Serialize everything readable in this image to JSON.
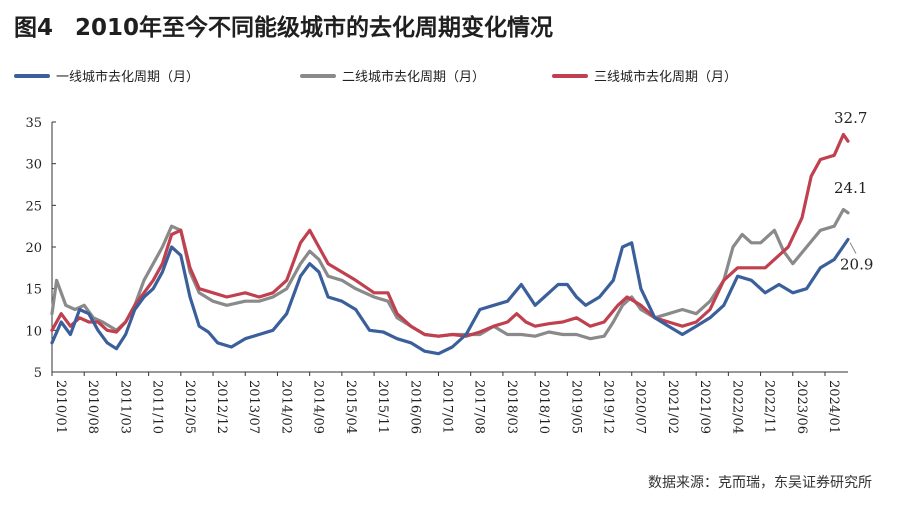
{
  "title": {
    "figure": "图4",
    "text": "2010年至今不同能级城市的去化周期变化情况"
  },
  "source": "数据来源：克而瑞，东吴证券研究所",
  "chart_data": {
    "type": "line",
    "title": "2010年至今不同能级城市的去化周期变化情况",
    "ylim": [
      5,
      35
    ],
    "yticks": [
      5,
      10,
      15,
      20,
      25,
      30,
      35
    ],
    "xticks": [
      "2010/01",
      "2010/08",
      "2011/03",
      "2011/10",
      "2012/05",
      "2012/12",
      "2013/07",
      "2014/02",
      "2014/09",
      "2015/04",
      "2015/11",
      "2016/06",
      "2017/01",
      "2017/08",
      "2018/03",
      "2018/10",
      "2019/05",
      "2019/12",
      "2020/07",
      "2021/02",
      "2021/09",
      "2022/04",
      "2022/11",
      "2023/06",
      "2024/01"
    ],
    "grid": false,
    "legend_position": "top",
    "series": [
      {
        "name": "一线城市去化周期（月）",
        "color": "#3a5f9b",
        "points": [
          [
            "2010/01",
            8.5
          ],
          [
            "2010/03",
            11
          ],
          [
            "2010/05",
            9.5
          ],
          [
            "2010/07",
            12.5
          ],
          [
            "2010/09",
            12
          ],
          [
            "2010/11",
            10
          ],
          [
            "2011/01",
            8.5
          ],
          [
            "2011/03",
            7.8
          ],
          [
            "2011/05",
            9.5
          ],
          [
            "2011/07",
            12.5
          ],
          [
            "2011/09",
            14
          ],
          [
            "2011/11",
            15
          ],
          [
            "2012/01",
            17
          ],
          [
            "2012/03",
            20
          ],
          [
            "2012/05",
            19
          ],
          [
            "2012/07",
            14
          ],
          [
            "2012/09",
            10.5
          ],
          [
            "2012/11",
            9.8
          ],
          [
            "2013/01",
            8.5
          ],
          [
            "2013/04",
            8
          ],
          [
            "2013/07",
            9
          ],
          [
            "2013/10",
            9.5
          ],
          [
            "2014/01",
            10
          ],
          [
            "2014/04",
            12
          ],
          [
            "2014/07",
            16.5
          ],
          [
            "2014/09",
            18
          ],
          [
            "2014/11",
            17
          ],
          [
            "2015/01",
            14
          ],
          [
            "2015/04",
            13.5
          ],
          [
            "2015/07",
            12.5
          ],
          [
            "2015/10",
            10
          ],
          [
            "2016/01",
            9.8
          ],
          [
            "2016/04",
            9
          ],
          [
            "2016/07",
            8.5
          ],
          [
            "2016/10",
            7.5
          ],
          [
            "2017/01",
            7.2
          ],
          [
            "2017/04",
            8
          ],
          [
            "2017/07",
            9.5
          ],
          [
            "2017/10",
            12.5
          ],
          [
            "2018/01",
            13
          ],
          [
            "2018/04",
            13.5
          ],
          [
            "2018/07",
            15.5
          ],
          [
            "2018/10",
            13
          ],
          [
            "2018/12",
            14
          ],
          [
            "2019/03",
            15.5
          ],
          [
            "2019/05",
            15.5
          ],
          [
            "2019/07",
            14
          ],
          [
            "2019/09",
            13
          ],
          [
            "2019/12",
            14
          ],
          [
            "2020/03",
            16
          ],
          [
            "2020/05",
            20
          ],
          [
            "2020/07",
            20.5
          ],
          [
            "2020/09",
            15
          ],
          [
            "2020/12",
            11.5
          ],
          [
            "2021/03",
            10.5
          ],
          [
            "2021/06",
            9.5
          ],
          [
            "2021/09",
            10.5
          ],
          [
            "2021/12",
            11.5
          ],
          [
            "2022/03",
            13
          ],
          [
            "2022/06",
            16.5
          ],
          [
            "2022/09",
            16
          ],
          [
            "2022/12",
            14.5
          ],
          [
            "2023/03",
            15.5
          ],
          [
            "2023/06",
            14.5
          ],
          [
            "2023/09",
            15
          ],
          [
            "2023/12",
            17.5
          ],
          [
            "2024/03",
            18.5
          ],
          [
            "2024/06",
            20.9
          ]
        ]
      },
      {
        "name": "二线城市去化周期（月）",
        "color": "#8a8a8a",
        "points": [
          [
            "2010/01",
            12
          ],
          [
            "2010/02",
            16
          ],
          [
            "2010/04",
            13
          ],
          [
            "2010/06",
            12.5
          ],
          [
            "2010/08",
            13
          ],
          [
            "2010/10",
            11.5
          ],
          [
            "2010/12",
            11
          ],
          [
            "2011/03",
            10
          ],
          [
            "2011/05",
            11
          ],
          [
            "2011/07",
            13
          ],
          [
            "2011/09",
            16
          ],
          [
            "2011/11",
            18
          ],
          [
            "2012/01",
            20
          ],
          [
            "2012/03",
            22.5
          ],
          [
            "2012/05",
            22
          ],
          [
            "2012/07",
            17
          ],
          [
            "2012/09",
            14.5
          ],
          [
            "2012/12",
            13.5
          ],
          [
            "2013/03",
            13
          ],
          [
            "2013/07",
            13.5
          ],
          [
            "2013/10",
            13.5
          ],
          [
            "2014/01",
            14
          ],
          [
            "2014/04",
            15
          ],
          [
            "2014/07",
            18
          ],
          [
            "2014/09",
            19.5
          ],
          [
            "2014/11",
            18.5
          ],
          [
            "2015/01",
            16.5
          ],
          [
            "2015/04",
            16
          ],
          [
            "2015/07",
            15
          ],
          [
            "2015/11",
            14
          ],
          [
            "2016/02",
            13.5
          ],
          [
            "2016/04",
            11.5
          ],
          [
            "2016/07",
            10.5
          ],
          [
            "2016/10",
            9.5
          ],
          [
            "2017/01",
            9.3
          ],
          [
            "2017/04",
            9.5
          ],
          [
            "2017/07",
            9.5
          ],
          [
            "2017/10",
            9.5
          ],
          [
            "2018/01",
            10.5
          ],
          [
            "2018/04",
            9.5
          ],
          [
            "2018/07",
            9.5
          ],
          [
            "2018/10",
            9.3
          ],
          [
            "2019/01",
            9.8
          ],
          [
            "2019/04",
            9.5
          ],
          [
            "2019/07",
            9.5
          ],
          [
            "2019/10",
            9
          ],
          [
            "2020/01",
            9.3
          ],
          [
            "2020/03",
            11
          ],
          [
            "2020/05",
            13
          ],
          [
            "2020/07",
            14
          ],
          [
            "2020/09",
            12.5
          ],
          [
            "2020/12",
            11.5
          ],
          [
            "2021/03",
            12
          ],
          [
            "2021/06",
            12.5
          ],
          [
            "2021/09",
            12
          ],
          [
            "2021/12",
            13.5
          ],
          [
            "2022/03",
            16
          ],
          [
            "2022/05",
            20
          ],
          [
            "2022/07",
            21.5
          ],
          [
            "2022/09",
            20.5
          ],
          [
            "2022/11",
            20.5
          ],
          [
            "2023/02",
            22
          ],
          [
            "2023/04",
            19.5
          ],
          [
            "2023/06",
            18
          ],
          [
            "2023/09",
            20
          ],
          [
            "2023/12",
            22
          ],
          [
            "2024/03",
            22.5
          ],
          [
            "2024/05",
            24.5
          ],
          [
            "2024/06",
            24.1
          ]
        ]
      },
      {
        "name": "三线城市去化周期（月）",
        "color": "#c0404f",
        "points": [
          [
            "2010/01",
            10
          ],
          [
            "2010/03",
            12
          ],
          [
            "2010/05",
            10.5
          ],
          [
            "2010/07",
            11.5
          ],
          [
            "2010/09",
            11
          ],
          [
            "2010/11",
            11
          ],
          [
            "2011/01",
            10
          ],
          [
            "2011/03",
            9.8
          ],
          [
            "2011/05",
            11
          ],
          [
            "2011/07",
            13
          ],
          [
            "2011/09",
            14.5
          ],
          [
            "2011/11",
            16
          ],
          [
            "2012/01",
            18
          ],
          [
            "2012/03",
            21.5
          ],
          [
            "2012/05",
            22
          ],
          [
            "2012/07",
            17.5
          ],
          [
            "2012/09",
            15
          ],
          [
            "2012/12",
            14.5
          ],
          [
            "2013/03",
            14
          ],
          [
            "2013/07",
            14.5
          ],
          [
            "2013/10",
            14
          ],
          [
            "2014/01",
            14.5
          ],
          [
            "2014/04",
            16
          ],
          [
            "2014/07",
            20.5
          ],
          [
            "2014/09",
            22
          ],
          [
            "2014/11",
            20
          ],
          [
            "2015/01",
            18
          ],
          [
            "2015/04",
            17
          ],
          [
            "2015/07",
            16
          ],
          [
            "2015/11",
            14.5
          ],
          [
            "2016/02",
            14.5
          ],
          [
            "2016/04",
            12
          ],
          [
            "2016/07",
            10.5
          ],
          [
            "2016/10",
            9.5
          ],
          [
            "2017/01",
            9.3
          ],
          [
            "2017/04",
            9.5
          ],
          [
            "2017/07",
            9.3
          ],
          [
            "2017/10",
            9.8
          ],
          [
            "2018/01",
            10.5
          ],
          [
            "2018/04",
            11
          ],
          [
            "2018/06",
            12
          ],
          [
            "2018/08",
            11
          ],
          [
            "2018/10",
            10.5
          ],
          [
            "2019/01",
            10.8
          ],
          [
            "2019/04",
            11
          ],
          [
            "2019/07",
            11.5
          ],
          [
            "2019/10",
            10.5
          ],
          [
            "2020/01",
            11
          ],
          [
            "2020/04",
            13
          ],
          [
            "2020/06",
            14
          ],
          [
            "2020/09",
            13
          ],
          [
            "2020/12",
            11.5
          ],
          [
            "2021/03",
            11
          ],
          [
            "2021/06",
            10.5
          ],
          [
            "2021/09",
            11
          ],
          [
            "2021/12",
            12.5
          ],
          [
            "2022/03",
            16
          ],
          [
            "2022/06",
            17.5
          ],
          [
            "2022/09",
            17.5
          ],
          [
            "2022/12",
            17.5
          ],
          [
            "2023/03",
            19
          ],
          [
            "2023/05",
            20
          ],
          [
            "2023/08",
            23.5
          ],
          [
            "2023/10",
            28.5
          ],
          [
            "2023/12",
            30.5
          ],
          [
            "2024/03",
            31
          ],
          [
            "2024/05",
            33.5
          ],
          [
            "2024/06",
            32.7
          ]
        ]
      }
    ],
    "end_labels": [
      {
        "series": 2,
        "text": "32.7"
      },
      {
        "series": 1,
        "text": "24.1"
      },
      {
        "series": 0,
        "text": "20.9"
      }
    ]
  }
}
